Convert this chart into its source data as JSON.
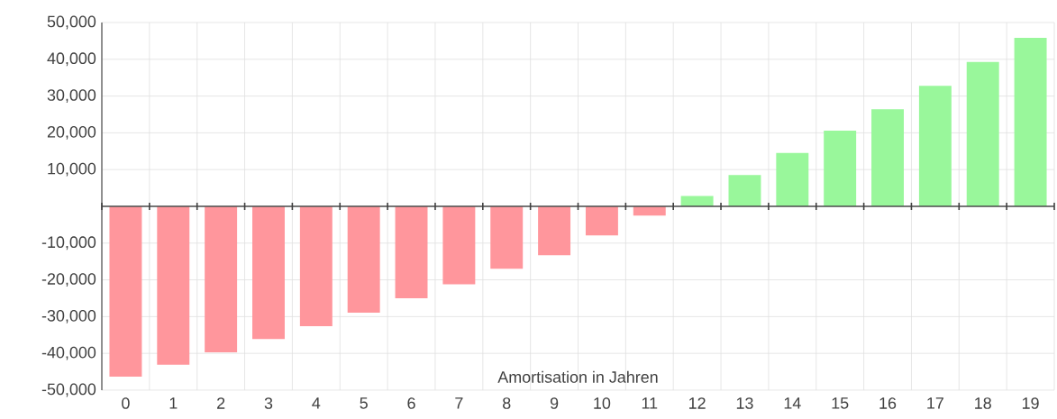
{
  "chart_data": {
    "type": "bar",
    "xlabel": "Amortisation in Jahren",
    "categories": [
      "0",
      "1",
      "2",
      "3",
      "4",
      "5",
      "6",
      "7",
      "8",
      "9",
      "10",
      "11",
      "12",
      "13",
      "14",
      "15",
      "16",
      "17",
      "18",
      "19"
    ],
    "values": [
      -46300,
      -43100,
      -39700,
      -36100,
      -32600,
      -28900,
      -25000,
      -21200,
      -17000,
      -13300,
      -7900,
      -2500,
      2800,
      8500,
      14500,
      20600,
      26400,
      32800,
      39300,
      45800
    ],
    "colors": [
      "#ff969c",
      "#ff969c",
      "#ff969c",
      "#ff969c",
      "#ff969c",
      "#ff969c",
      "#ff969c",
      "#ff969c",
      "#ff969c",
      "#ff969c",
      "#ff969c",
      "#ff969c",
      "#99f79b",
      "#99f79b",
      "#99f79b",
      "#99f79b",
      "#99f79b",
      "#99f79b",
      "#99f79b",
      "#99f79b"
    ],
    "ylim": [
      -50000,
      50000
    ],
    "yticks": [
      {
        "value": -50000,
        "label": "-50,000"
      },
      {
        "value": -40000,
        "label": "-40,000"
      },
      {
        "value": -30000,
        "label": "-30,000"
      },
      {
        "value": -20000,
        "label": "-20,000"
      },
      {
        "value": -10000,
        "label": "-10,000"
      },
      {
        "value": 0,
        "label": null
      },
      {
        "value": 10000,
        "label": "10,000"
      },
      {
        "value": 20000,
        "label": "20,000"
      },
      {
        "value": 30000,
        "label": "30,000"
      },
      {
        "value": 40000,
        "label": "40,000"
      },
      {
        "value": 50000,
        "label": "50,000"
      }
    ],
    "grid": true
  }
}
